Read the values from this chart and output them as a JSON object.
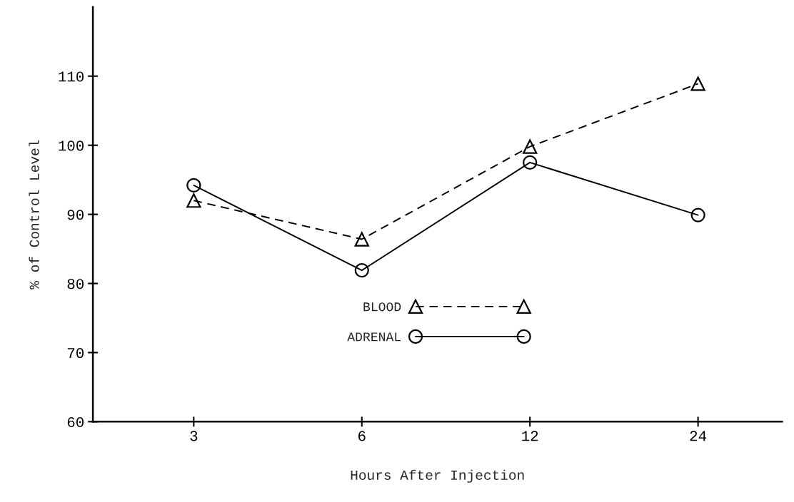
{
  "chart_data": {
    "type": "line",
    "xlabel": "Hours After Injection",
    "ylabel": "% of Control Level",
    "categories": [
      "3",
      "6",
      "12",
      "24"
    ],
    "series": [
      {
        "name": "BLOOD",
        "color": "#000000",
        "values": [
          92,
          86.4,
          99.8,
          108.9
        ],
        "marker": "triangle",
        "line_style": "dashed"
      },
      {
        "name": "ADRENAL",
        "color": "#000000",
        "values": [
          94.2,
          81.9,
          97.5,
          89.9
        ],
        "marker": "circle",
        "line_style": "solid"
      }
    ],
    "ylim": [
      60,
      120
    ],
    "yticks": [
      60,
      70,
      80,
      90,
      100,
      110
    ],
    "grid": false,
    "legend": "lower center"
  }
}
